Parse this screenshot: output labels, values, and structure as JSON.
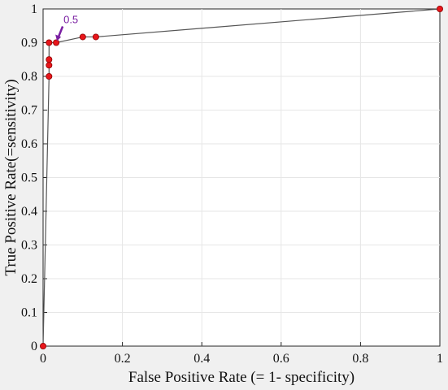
{
  "colors": {
    "figure_background": "#f0f0f0",
    "plot_background": "#ffffff",
    "grid": "#e6e6e6",
    "line": "#555555",
    "marker_fill": "#e8161b",
    "marker_edge": "#8b0000",
    "annotation": "#7a1fa2"
  },
  "chart_data": {
    "type": "line",
    "title": "",
    "xlabel": "False Positive Rate (= 1- specificity)",
    "ylabel": "True Positive Rate(=sensitivity)",
    "xlim": [
      0,
      1
    ],
    "ylim": [
      0,
      1
    ],
    "grid": true,
    "x_ticks": [
      0,
      0.2,
      0.4,
      0.6,
      0.8,
      1
    ],
    "x_tick_labels": [
      "0",
      "0.2",
      "0.4",
      "0.6",
      "0.8",
      "1"
    ],
    "y_ticks": [
      0,
      0.1,
      0.2,
      0.3,
      0.4,
      0.5,
      0.6,
      0.7,
      0.8,
      0.9,
      1
    ],
    "y_tick_labels": [
      "0",
      "0.1",
      "0.2",
      "0.3",
      "0.4",
      "0.5",
      "0.6",
      "0.7",
      "0.8",
      "0.9",
      "1"
    ],
    "series": [
      {
        "x": [
          0,
          0.015,
          0.015,
          0.015,
          0.015,
          0.033,
          0.1,
          0.133,
          1
        ],
        "y": [
          0,
          0.8,
          0.833,
          0.85,
          0.9,
          0.9,
          0.917,
          0.917,
          1
        ]
      }
    ],
    "annotations": [
      {
        "text": "0.5",
        "point": [
          0.033,
          0.9
        ]
      }
    ]
  }
}
